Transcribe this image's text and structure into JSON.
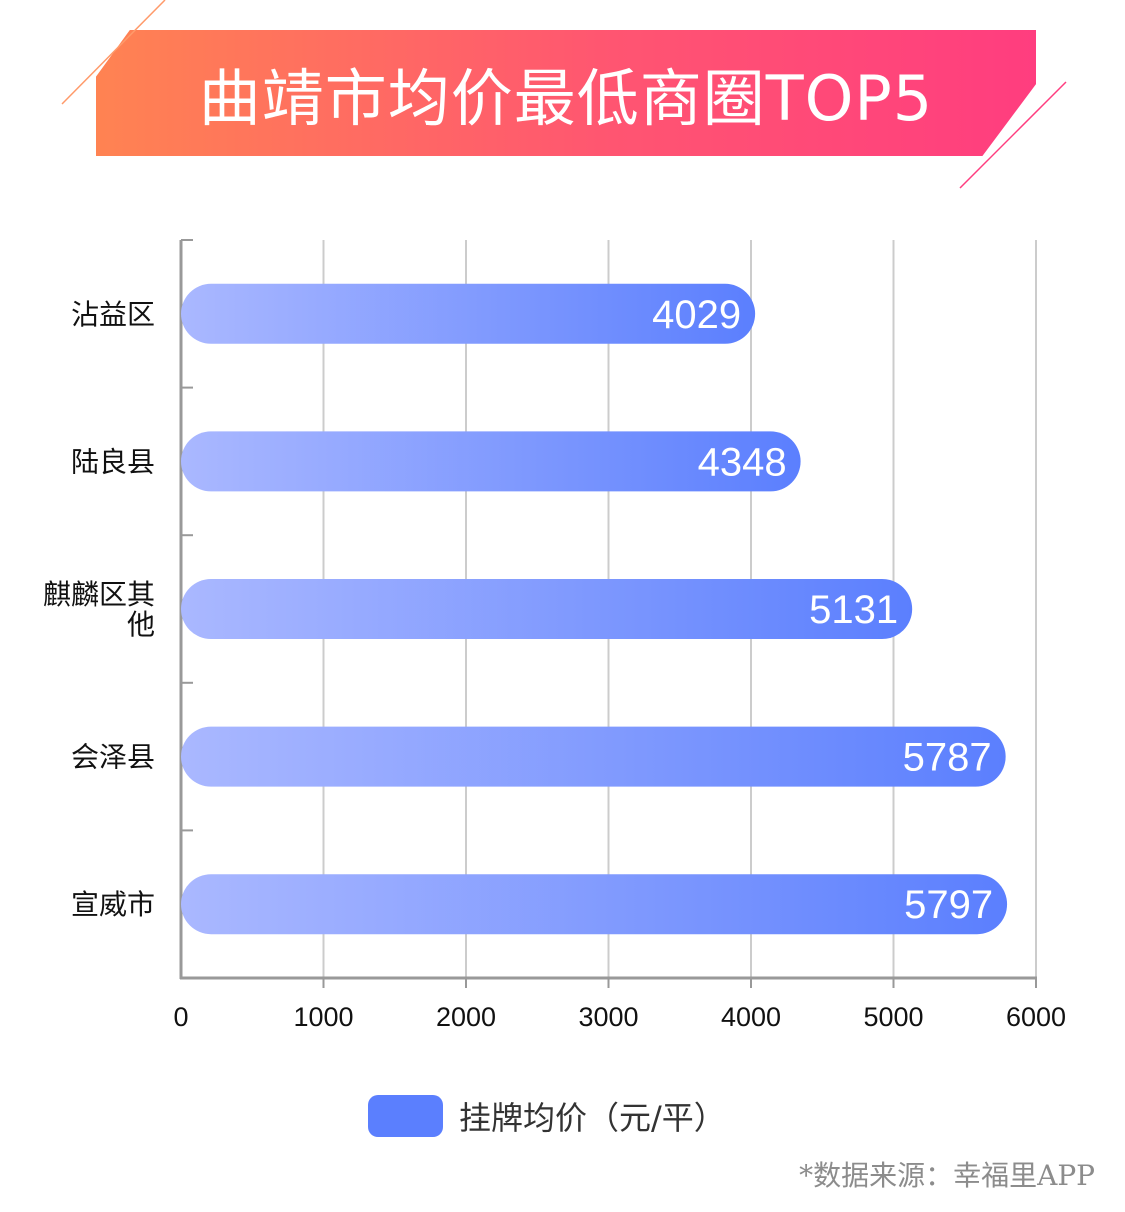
{
  "title": "曲靖市均价最低商圈TOP5",
  "source": "*数据来源：幸福里APP",
  "colors": {
    "banner_start": "#ff8352",
    "banner_end": "#ff3d7f",
    "bar_start": "#aab8ff",
    "bar_end": "#5b7ffe",
    "grid": "#cccccc",
    "axis": "#999999"
  },
  "chart_data": {
    "type": "bar",
    "orientation": "horizontal",
    "categories": [
      "沾益区",
      "陆良县",
      "麒麟区其他",
      "会泽县",
      "宣威市"
    ],
    "series": [
      {
        "name": "挂牌均价（元/平）",
        "values": [
          4029,
          4348,
          5131,
          5787,
          5797
        ]
      }
    ],
    "xlim": [
      0,
      6000
    ],
    "xticks": [
      "0",
      "1000",
      "2000",
      "3000",
      "4000",
      "5000",
      "6000"
    ],
    "grid": true,
    "legend": "bottom"
  }
}
